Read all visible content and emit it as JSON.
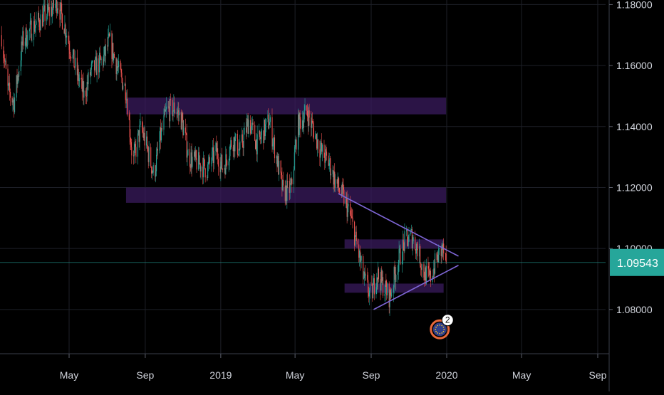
{
  "chart_data": {
    "type": "candlestick",
    "title": "",
    "xlabel": "",
    "ylabel": "",
    "ylim": [
      1.0655,
      1.1815
    ],
    "yticks": [
      {
        "value": 1.18,
        "label": "1.18000"
      },
      {
        "value": 1.16,
        "label": "1.16000"
      },
      {
        "value": 1.14,
        "label": "1.14000"
      },
      {
        "value": 1.12,
        "label": "1.12000"
      },
      {
        "value": 1.1,
        "label": "1.10000"
      },
      {
        "value": 1.08,
        "label": "1.08000"
      }
    ],
    "xticks": [
      {
        "date": "2018-05-01",
        "label": "May"
      },
      {
        "date": "2018-09-01",
        "label": "Sep"
      },
      {
        "date": "2019-01-01",
        "label": "2019"
      },
      {
        "date": "2019-05-01",
        "label": "May"
      },
      {
        "date": "2019-09-01",
        "label": "Sep"
      },
      {
        "date": "2020-01-01",
        "label": "2020"
      },
      {
        "date": "2020-05-01",
        "label": "May"
      },
      {
        "date": "2020-09-01",
        "label": "Sep"
      }
    ],
    "x_range": [
      "2018-01-12",
      "2020-09-01"
    ],
    "last_price": {
      "value": 1.09543,
      "label": "1.09543"
    },
    "colors": {
      "background": "#000000",
      "grid": "#1e2028",
      "up": "#26a69a",
      "down": "#ef5350",
      "zone": "#3a1b5e",
      "trendline": "#7e66d6",
      "last_price": "#26a69a",
      "axis_text": "#d1d4dc",
      "event_marker": "#e8683a",
      "event_inner": "#2f3e8a"
    },
    "path": [
      [
        "2018-01-12",
        1.17
      ],
      [
        "2018-01-22",
        1.152
      ],
      [
        "2018-02-01",
        1.148
      ],
      [
        "2018-02-15",
        1.168
      ],
      [
        "2018-03-01",
        1.172
      ],
      [
        "2018-03-20",
        1.176
      ],
      [
        "2018-04-01",
        1.178
      ],
      [
        "2018-04-12",
        1.181
      ],
      [
        "2018-04-25",
        1.172
      ],
      [
        "2018-05-10",
        1.16
      ],
      [
        "2018-05-25",
        1.15
      ],
      [
        "2018-06-05",
        1.158
      ],
      [
        "2018-06-25",
        1.162
      ],
      [
        "2018-07-05",
        1.168
      ],
      [
        "2018-07-20",
        1.158
      ],
      [
        "2018-08-01",
        1.152
      ],
      [
        "2018-08-12",
        1.128
      ],
      [
        "2018-08-25",
        1.14
      ],
      [
        "2018-09-05",
        1.132
      ],
      [
        "2018-09-15",
        1.124
      ],
      [
        "2018-09-25",
        1.136
      ],
      [
        "2018-10-05",
        1.145
      ],
      [
        "2018-10-20",
        1.146
      ],
      [
        "2018-10-30",
        1.142
      ],
      [
        "2018-11-10",
        1.13
      ],
      [
        "2018-11-25",
        1.128
      ],
      [
        "2018-12-10",
        1.126
      ],
      [
        "2018-12-25",
        1.132
      ],
      [
        "2019-01-05",
        1.126
      ],
      [
        "2019-01-20",
        1.136
      ],
      [
        "2019-02-01",
        1.132
      ],
      [
        "2019-02-15",
        1.142
      ],
      [
        "2019-03-01",
        1.134
      ],
      [
        "2019-03-20",
        1.142
      ],
      [
        "2019-04-01",
        1.13
      ],
      [
        "2019-04-12",
        1.118
      ],
      [
        "2019-04-25",
        1.12
      ],
      [
        "2019-05-05",
        1.14
      ],
      [
        "2019-05-20",
        1.145
      ],
      [
        "2019-06-01",
        1.138
      ],
      [
        "2019-06-12",
        1.132
      ],
      [
        "2019-06-25",
        1.128
      ],
      [
        "2019-07-05",
        1.122
      ],
      [
        "2019-07-20",
        1.116
      ],
      [
        "2019-07-30",
        1.11
      ],
      [
        "2019-08-10",
        1.1
      ],
      [
        "2019-08-20",
        1.09
      ],
      [
        "2019-09-01",
        1.084
      ],
      [
        "2019-09-10",
        1.092
      ],
      [
        "2019-09-20",
        1.088
      ],
      [
        "2019-10-01",
        1.084
      ],
      [
        "2019-10-12",
        1.094
      ],
      [
        "2019-10-25",
        1.102
      ],
      [
        "2019-11-05",
        1.104
      ],
      [
        "2019-11-15",
        1.1
      ],
      [
        "2019-11-25",
        1.092
      ],
      [
        "2019-12-05",
        1.09
      ],
      [
        "2019-12-15",
        1.096
      ],
      [
        "2019-12-25",
        1.1
      ],
      [
        "2019-12-31",
        1.0954
      ]
    ],
    "zones": [
      {
        "start": "2018-08-01",
        "end": "2019-12-31",
        "low": 1.144,
        "high": 1.1495
      },
      {
        "start": "2018-08-01",
        "end": "2019-12-31",
        "low": 1.115,
        "high": 1.12
      },
      {
        "start": "2019-07-20",
        "end": "2019-12-27",
        "low": 1.1,
        "high": 1.103
      },
      {
        "start": "2019-07-20",
        "end": "2019-12-27",
        "low": 1.0855,
        "high": 1.0885
      }
    ],
    "trendlines": [
      {
        "from": [
          "2019-07-10",
          1.118
        ],
        "to": [
          "2020-01-20",
          1.0975
        ]
      },
      {
        "from": [
          "2019-09-05",
          1.08
        ],
        "to": [
          "2020-01-20",
          1.0945
        ]
      }
    ],
    "event_marker": {
      "date": "2019-12-30",
      "price": 1.0735,
      "count": "2"
    }
  }
}
